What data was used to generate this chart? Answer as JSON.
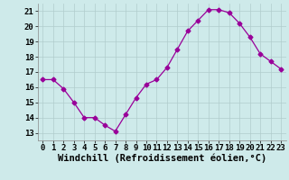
{
  "x": [
    0,
    1,
    2,
    3,
    4,
    5,
    6,
    7,
    8,
    9,
    10,
    11,
    12,
    13,
    14,
    15,
    16,
    17,
    18,
    19,
    20,
    21,
    22,
    23
  ],
  "y": [
    16.5,
    16.5,
    15.9,
    15.0,
    14.0,
    14.0,
    13.5,
    13.1,
    14.2,
    15.3,
    16.2,
    16.5,
    17.3,
    18.5,
    19.7,
    20.4,
    21.1,
    21.1,
    20.9,
    20.2,
    19.3,
    18.2,
    17.7,
    17.2
  ],
  "line_color": "#990099",
  "marker": "D",
  "marker_size": 2.5,
  "xlabel": "Windchill (Refroidissement éolien,°C)",
  "xlabel_fontsize": 7.5,
  "ylim": [
    12.5,
    21.5
  ],
  "xlim": [
    -0.5,
    23.5
  ],
  "yticks": [
    13,
    14,
    15,
    16,
    17,
    18,
    19,
    20,
    21
  ],
  "xticks": [
    0,
    1,
    2,
    3,
    4,
    5,
    6,
    7,
    8,
    9,
    10,
    11,
    12,
    13,
    14,
    15,
    16,
    17,
    18,
    19,
    20,
    21,
    22,
    23
  ],
  "background_color": "#ceeaea",
  "grid_color": "#b0cccc",
  "tick_fontsize": 6.5,
  "spine_color": "#888888"
}
